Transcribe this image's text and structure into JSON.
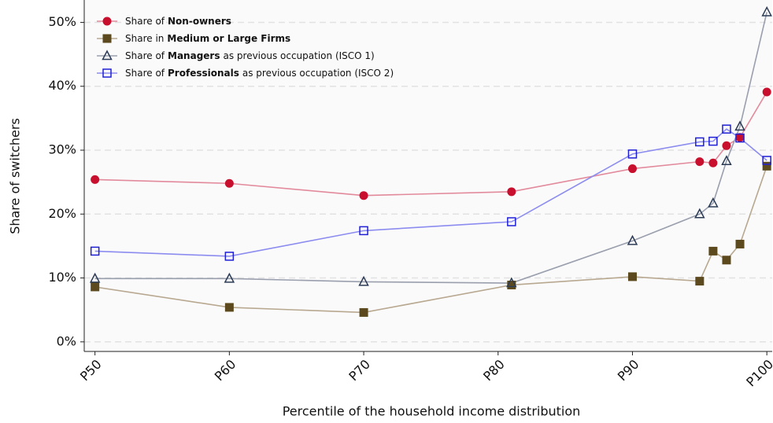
{
  "chart_data": {
    "type": "line",
    "x_label": "Percentile of the household income distribution",
    "y_label": "Share of switchers",
    "x": [
      50,
      60,
      70,
      81,
      90,
      95,
      96,
      97,
      98,
      100
    ],
    "xlim": [
      49.2,
      100.4
    ],
    "xticks": [
      {
        "value": 50,
        "label": "P50"
      },
      {
        "value": 60,
        "label": "P60"
      },
      {
        "value": 70,
        "label": "P70"
      },
      {
        "value": 80,
        "label": "P80"
      },
      {
        "value": 90,
        "label": "P90"
      },
      {
        "value": 100,
        "label": "P100"
      }
    ],
    "ylim": [
      -1.5,
      53.5
    ],
    "yticks": [
      {
        "value": 0,
        "label": "0%"
      },
      {
        "value": 10,
        "label": "10%"
      },
      {
        "value": 20,
        "label": "20%"
      },
      {
        "value": 30,
        "label": "30%"
      },
      {
        "value": 40,
        "label": "40%"
      },
      {
        "value": 50,
        "label": "50%"
      }
    ],
    "grid": true,
    "legend": "upper left",
    "series": [
      {
        "name": [
          "Share of",
          "Non-owners"
        ],
        "color": "#c8102e",
        "line_color": "#e28a9c",
        "marker": "circle",
        "values": [
          25.4,
          24.8,
          22.9,
          23.5,
          27.1,
          28.2,
          28.0,
          30.7,
          32.0,
          39.1
        ]
      },
      {
        "name": [
          "Share in",
          "Medium or Large Firms"
        ],
        "color": "#5c4a1e",
        "line_color": "#b8a890",
        "marker": "square",
        "values": [
          8.6,
          5.4,
          4.6,
          8.9,
          10.2,
          9.5,
          14.2,
          12.8,
          15.3,
          27.5
        ]
      },
      {
        "name": [
          "Share of",
          "Managers",
          "as previous occupation (ISCO 1)"
        ],
        "color": "#2b3a55",
        "line_color": "#9a9fae",
        "marker": "triangle",
        "values": [
          9.9,
          9.9,
          9.4,
          9.2,
          15.8,
          20.0,
          21.7,
          28.3,
          33.7,
          51.6
        ]
      },
      {
        "name": [
          "Share of",
          "Professionals",
          "as previous occupation (ISCO 2)"
        ],
        "color": "#1f1fd6",
        "line_color": "#8c8cf0",
        "marker": "open-square",
        "values": [
          14.2,
          13.4,
          17.4,
          18.8,
          29.4,
          31.3,
          31.4,
          33.3,
          31.9,
          28.4
        ]
      }
    ]
  }
}
